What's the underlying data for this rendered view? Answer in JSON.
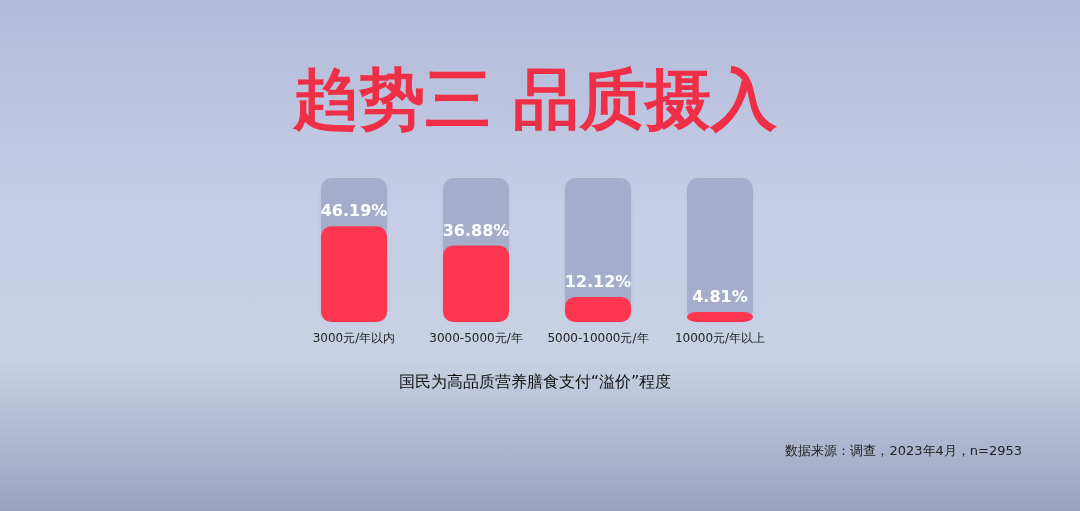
{
  "chart_data": {
    "type": "bar",
    "title": "趋势三 品质摄入",
    "xlabel": "国民为高品质营养膳食支付“溢价”程度",
    "categories": [
      "3000元/年以内",
      "3000-5000元/年",
      "5000-10000元/年",
      "10000元/年以上"
    ],
    "values": [
      46.19,
      36.88,
      12.12,
      4.81
    ],
    "value_labels": [
      "46.19%",
      "36.88%",
      "12.12%",
      "4.81%"
    ],
    "color": "#ff3650",
    "annotations": [
      "数据来源：调查，2023年4月，n=2953"
    ]
  }
}
